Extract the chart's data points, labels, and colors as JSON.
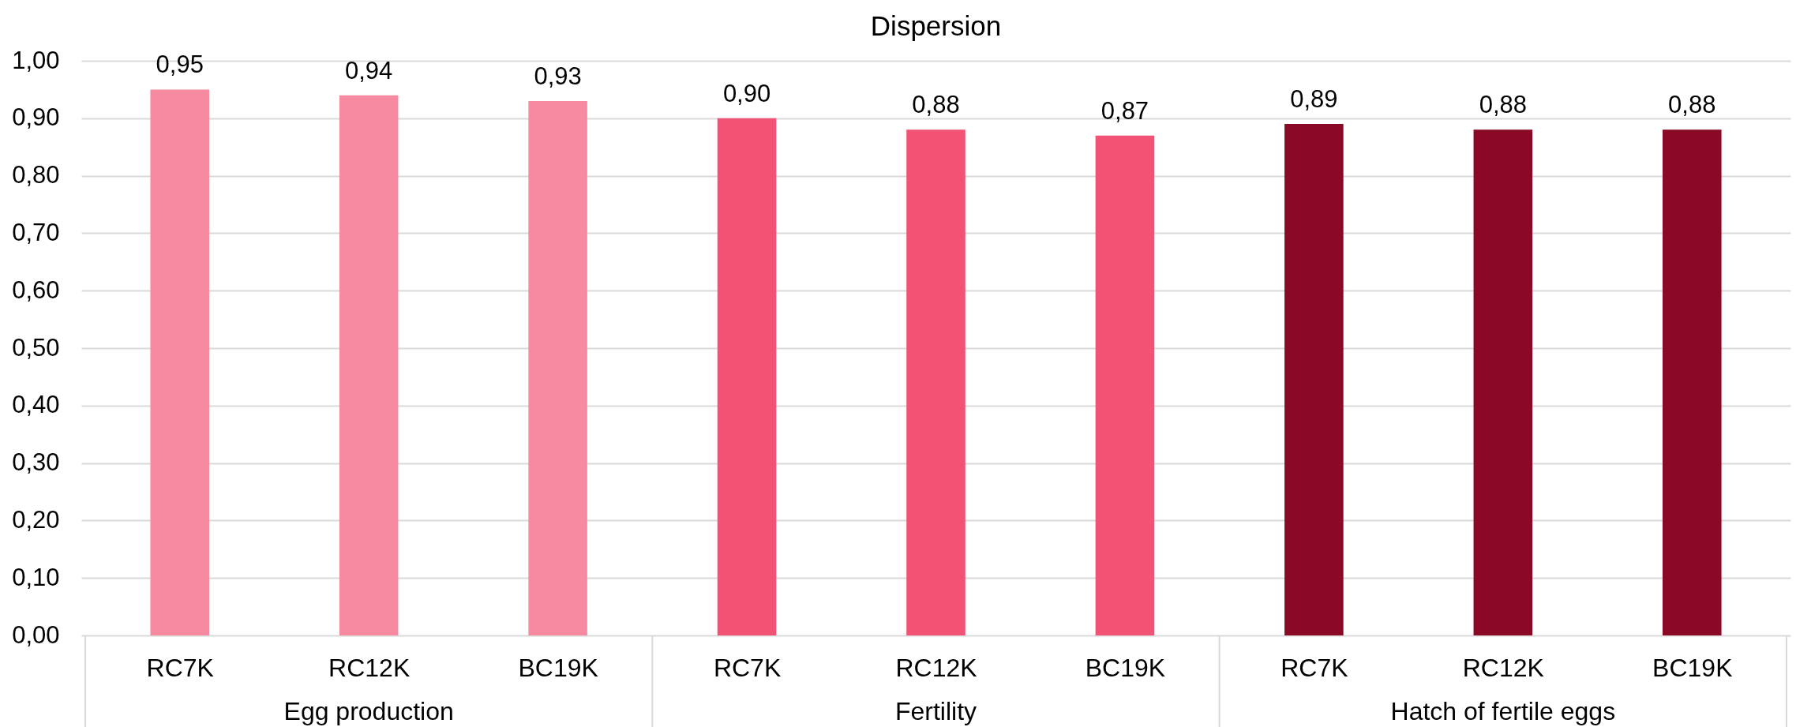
{
  "chart_data": {
    "type": "bar",
    "title": "Dispersion",
    "categories": [
      "RC7K",
      "RC12K",
      "BC19K",
      "RC7K",
      "RC12K",
      "BC19K",
      "RC7K",
      "RC12K",
      "BC19K"
    ],
    "series": [
      {
        "name": "Egg production",
        "color": "#f68aa0",
        "values": [
          0.95,
          0.94,
          0.93,
          null,
          null,
          null,
          null,
          null,
          null
        ],
        "value_labels": [
          "0,95",
          "0,94",
          "0,93",
          null,
          null,
          null,
          null,
          null,
          null
        ]
      },
      {
        "name": "Fertility",
        "color": "#f25273",
        "values": [
          null,
          null,
          null,
          0.9,
          0.88,
          0.87,
          null,
          null,
          null
        ],
        "value_labels": [
          null,
          null,
          null,
          "0,90",
          "0,88",
          "0,87",
          null,
          null,
          null
        ]
      },
      {
        "name": "Hatch of fertile eggs",
        "color": "#8a0a25",
        "values": [
          null,
          null,
          null,
          null,
          null,
          null,
          0.89,
          0.88,
          0.88
        ],
        "value_labels": [
          null,
          null,
          null,
          null,
          null,
          null,
          "0,89",
          "0,88",
          "0,88"
        ]
      }
    ],
    "ylim": [
      0,
      1
    ],
    "yticks": [
      {
        "value": 0,
        "label": "0,00"
      },
      {
        "value": 0.1,
        "label": "0,10"
      },
      {
        "value": 0.2,
        "label": "0,20"
      },
      {
        "value": 0.3,
        "label": "0,30"
      },
      {
        "value": 0.4,
        "label": "0,40"
      },
      {
        "value": 0.5,
        "label": "0,50"
      },
      {
        "value": 0.6,
        "label": "0,60"
      },
      {
        "value": 0.7,
        "label": "0,70"
      },
      {
        "value": 0.8,
        "label": "0,80"
      },
      {
        "value": 0.9,
        "label": "0,90"
      },
      {
        "value": 1,
        "label": "1,00"
      }
    ],
    "grid": "y"
  }
}
